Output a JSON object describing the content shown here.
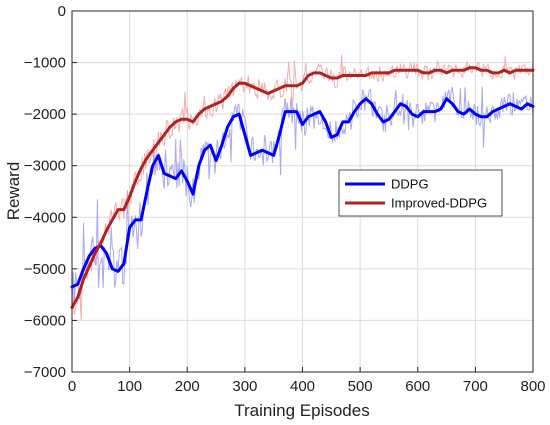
{
  "chart_data": {
    "type": "line",
    "xlabel": "Training Episodes",
    "ylabel": "Reward",
    "xlim": [
      0,
      800
    ],
    "ylim": [
      -7000,
      0
    ],
    "xticks": [
      0,
      100,
      200,
      300,
      400,
      500,
      600,
      700,
      800
    ],
    "yticks": [
      -7000,
      -6000,
      -5000,
      -4000,
      -3000,
      -2000,
      -1000,
      0
    ],
    "grid": true,
    "legend_position": "center-right",
    "series": [
      {
        "name": "DDPG",
        "color": "#0000ff",
        "raw_color": "#9999f2",
        "x": [
          0,
          10,
          20,
          30,
          40,
          50,
          60,
          70,
          80,
          90,
          100,
          110,
          120,
          130,
          140,
          150,
          160,
          170,
          180,
          190,
          200,
          210,
          220,
          230,
          240,
          250,
          260,
          270,
          280,
          290,
          300,
          310,
          320,
          330,
          340,
          350,
          360,
          370,
          380,
          390,
          400,
          410,
          420,
          430,
          440,
          450,
          460,
          470,
          480,
          490,
          500,
          510,
          520,
          530,
          540,
          550,
          560,
          570,
          580,
          590,
          600,
          610,
          620,
          630,
          640,
          650,
          660,
          670,
          680,
          690,
          700,
          710,
          720,
          730,
          740,
          750,
          760,
          770,
          780,
          790,
          800
        ],
        "values": [
          -5350,
          -5300,
          -5000,
          -4750,
          -4600,
          -4550,
          -4700,
          -5000,
          -5050,
          -4900,
          -4200,
          -4050,
          -4050,
          -3500,
          -3000,
          -2800,
          -3150,
          -3200,
          -3250,
          -3100,
          -3300,
          -3550,
          -3000,
          -2700,
          -2600,
          -2900,
          -2600,
          -2250,
          -2050,
          -2000,
          -2400,
          -2800,
          -2750,
          -2700,
          -2750,
          -2800,
          -2400,
          -1950,
          -1950,
          -1950,
          -2200,
          -2050,
          -2000,
          -1950,
          -2150,
          -2450,
          -2400,
          -2150,
          -2150,
          -1950,
          -1800,
          -1700,
          -1800,
          -2000,
          -2150,
          -2100,
          -1950,
          -1800,
          -1850,
          -2000,
          -2050,
          -1950,
          -1950,
          -1950,
          -1900,
          -1700,
          -1800,
          -1950,
          -2000,
          -1900,
          -2000,
          -2050,
          -2050,
          -1950,
          -1900,
          -1850,
          -1800,
          -1850,
          -1900,
          -1800,
          -1850
        ]
      },
      {
        "name": "Improved-DDPG",
        "color": "#b22222",
        "raw_color": "#f5a0a0",
        "x": [
          0,
          10,
          20,
          30,
          40,
          50,
          60,
          70,
          80,
          90,
          100,
          110,
          120,
          130,
          140,
          150,
          160,
          170,
          180,
          190,
          200,
          210,
          220,
          230,
          240,
          250,
          260,
          270,
          280,
          290,
          300,
          310,
          320,
          330,
          340,
          350,
          360,
          370,
          380,
          390,
          400,
          410,
          420,
          430,
          440,
          450,
          460,
          470,
          480,
          490,
          500,
          510,
          520,
          530,
          540,
          550,
          560,
          570,
          580,
          590,
          600,
          610,
          620,
          630,
          640,
          650,
          660,
          670,
          680,
          690,
          700,
          710,
          720,
          730,
          740,
          750,
          760,
          770,
          780,
          790,
          800
        ],
        "values": [
          -5750,
          -5550,
          -5200,
          -4950,
          -4700,
          -4500,
          -4250,
          -4050,
          -3850,
          -3850,
          -3600,
          -3300,
          -3050,
          -2850,
          -2700,
          -2550,
          -2400,
          -2250,
          -2150,
          -2100,
          -2100,
          -2150,
          -2000,
          -1900,
          -1850,
          -1800,
          -1750,
          -1650,
          -1500,
          -1400,
          -1400,
          -1450,
          -1500,
          -1550,
          -1600,
          -1550,
          -1500,
          -1450,
          -1450,
          -1450,
          -1400,
          -1250,
          -1200,
          -1200,
          -1250,
          -1300,
          -1300,
          -1250,
          -1250,
          -1250,
          -1250,
          -1250,
          -1200,
          -1200,
          -1200,
          -1200,
          -1150,
          -1150,
          -1150,
          -1150,
          -1150,
          -1200,
          -1200,
          -1150,
          -1150,
          -1200,
          -1150,
          -1150,
          -1150,
          -1100,
          -1100,
          -1150,
          -1150,
          -1200,
          -1200,
          -1150,
          -1200,
          -1150,
          -1150,
          -1150,
          -1150
        ]
      }
    ]
  }
}
